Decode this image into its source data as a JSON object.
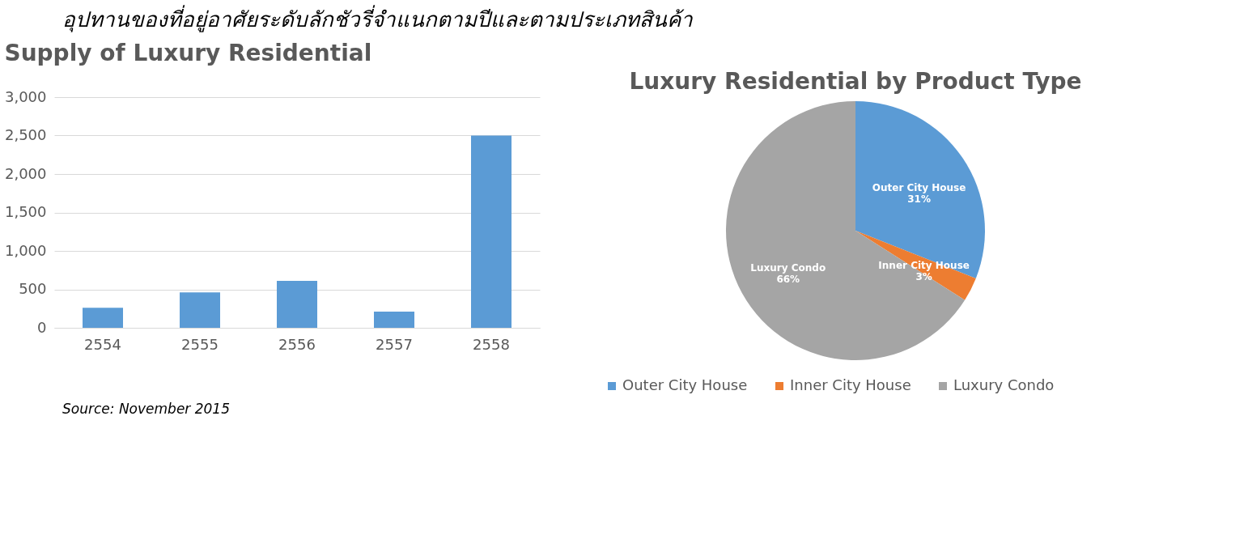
{
  "chart_data": [
    {
      "type": "bar",
      "title": "Supply of Luxury Residential",
      "categories": [
        "2554",
        "2555",
        "2556",
        "2557",
        "2558"
      ],
      "values": [
        260,
        460,
        610,
        210,
        2500
      ],
      "color": "#5b9bd5",
      "ylim": [
        0,
        3000
      ],
      "yticks": [
        0,
        500,
        {
          "value": 1000,
          "label": "1,000"
        },
        {
          "value": 1500,
          "label": "1,500"
        },
        {
          "value": 2000,
          "label": "2,000"
        },
        {
          "value": 2500,
          "label": "2,500"
        },
        {
          "value": 3000,
          "label": "3,000"
        }
      ],
      "grid": "y",
      "annotations": [
        "อุปทานของที่อยู่อาศัยระดับลักชัวรี่จำแนกตามปีและตามประเภทสินค้า",
        "Source: November 2015"
      ]
    },
    {
      "type": "pie",
      "title": "Luxury Residential by Product Type",
      "categories": [
        "Outer City House",
        "Inner City House",
        "Luxury Condo"
      ],
      "values": [
        31,
        3,
        66
      ],
      "colors": [
        "#5b9bd5",
        "#ed7d31",
        "#a5a5a5"
      ],
      "value_labels": [
        "31%",
        "3%",
        "66%"
      ],
      "legend": "bottom"
    }
  ]
}
